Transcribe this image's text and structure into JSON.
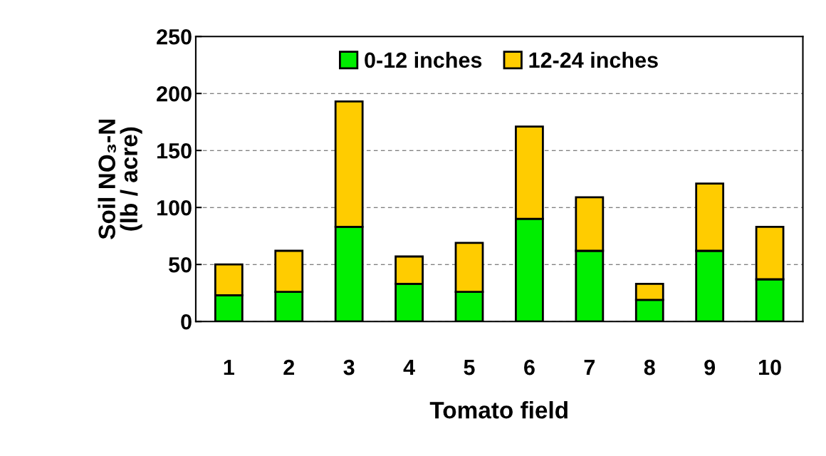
{
  "chart_data": {
    "type": "bar",
    "stacked": true,
    "xlabel": "Tomato field",
    "ylabel": "Soil NO₃-N\n(lb / acre)",
    "categories": [
      "1",
      "2",
      "3",
      "4",
      "5",
      "6",
      "7",
      "8",
      "9",
      "10"
    ],
    "series": [
      {
        "name": "0-12 inches",
        "color": "#00ee00",
        "values": [
          23,
          26,
          83,
          33,
          26,
          90,
          62,
          19,
          62,
          37
        ]
      },
      {
        "name": "12-24 inches",
        "color": "#ffcc00",
        "values": [
          27,
          36,
          110,
          24,
          43,
          81,
          47,
          14,
          59,
          46
        ]
      }
    ],
    "ylim": [
      0,
      250
    ],
    "yticks": [
      0,
      50,
      100,
      150,
      200,
      250
    ],
    "grid": "y",
    "legend": "top"
  }
}
